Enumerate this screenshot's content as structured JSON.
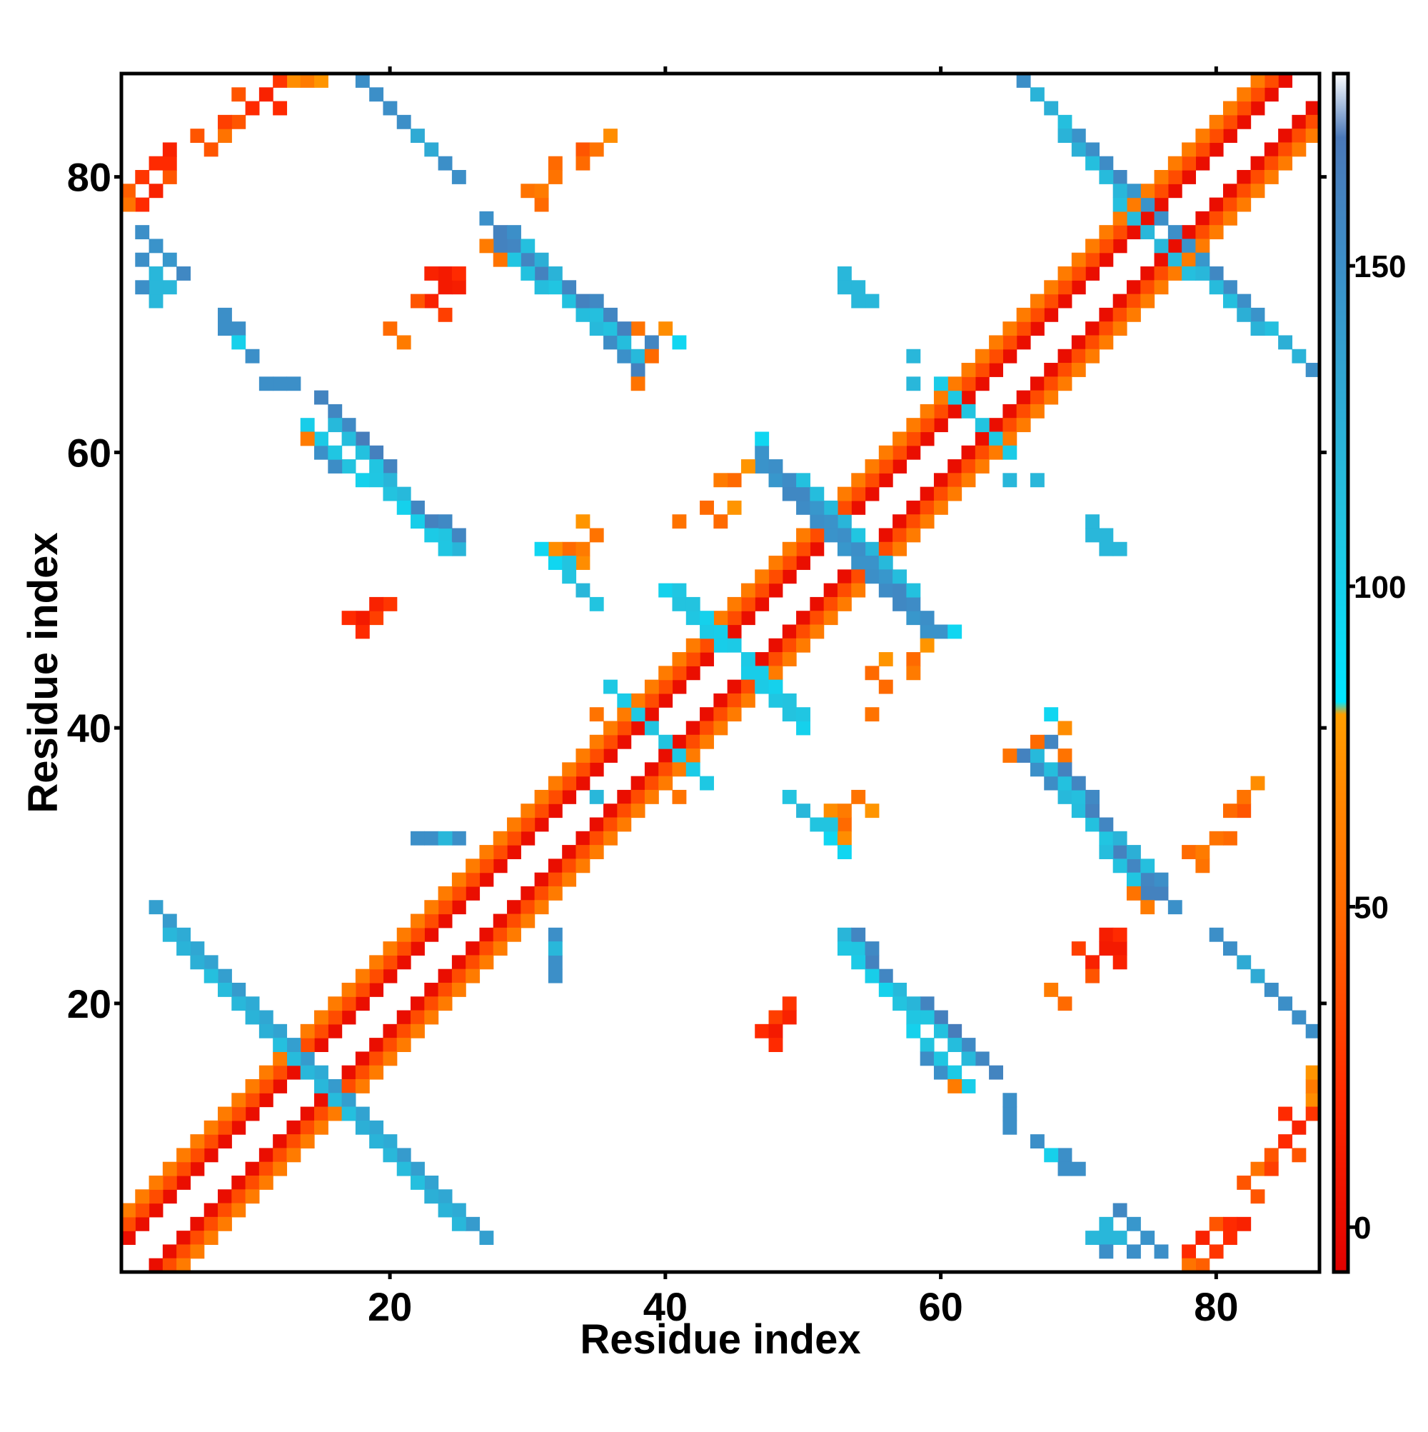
{
  "chart_data": {
    "type": "heatmap",
    "title": "",
    "xlabel": "Residue index",
    "ylabel": "Residue index",
    "xlim": [
      0.5,
      87.5
    ],
    "ylim": [
      0.5,
      87.5
    ],
    "xticks": [
      20,
      40,
      60,
      80
    ],
    "yticks": [
      20,
      40,
      60,
      80
    ],
    "colorbar": {
      "range": [
        -7,
        180
      ],
      "ticks": [
        0,
        50,
        100,
        150
      ],
      "stops": [
        {
          "value": -7,
          "color": "#e00000"
        },
        {
          "value": 20,
          "color": "#ff2a00"
        },
        {
          "value": 50,
          "color": "#ff6a00"
        },
        {
          "value": 80,
          "color": "#ff9e00"
        },
        {
          "value": 82,
          "color": "#00e5ff"
        },
        {
          "value": 110,
          "color": "#22c4e0"
        },
        {
          "value": 150,
          "color": "#3c8fc8"
        },
        {
          "value": 170,
          "color": "#4a78b8"
        },
        {
          "value": 180,
          "color": "#ffffff"
        }
      ]
    },
    "symmetric": true,
    "segments": [
      {
        "from": [
          1,
          3
        ],
        "to": [
          85,
          87
        ],
        "value": 5,
        "note": "i,i+2 diagonal"
      },
      {
        "from": [
          1,
          4
        ],
        "to": [
          84,
          87
        ],
        "value": 30
      },
      {
        "from": [
          1,
          5
        ],
        "to": [
          83,
          87
        ],
        "value": 60
      },
      {
        "from": [
          3,
          27
        ],
        "to": [
          27,
          3
        ],
        "value": 135,
        "note": "antiparallel sheet"
      },
      {
        "from": [
          4,
          25
        ],
        "to": [
          25,
          4
        ],
        "value": 120
      },
      {
        "from": [
          2,
          76
        ],
        "to": [
          5,
          73
        ],
        "value": 150
      },
      {
        "from": [
          15,
          64
        ],
        "to": [
          24,
          54
        ],
        "value": 160
      },
      {
        "from": [
          16,
          62
        ],
        "to": [
          25,
          53
        ],
        "value": 115
      },
      {
        "from": [
          27,
          77
        ],
        "to": [
          38,
          66
        ],
        "value": 155
      },
      {
        "from": [
          29,
          76
        ],
        "to": [
          37,
          68
        ],
        "value": 120
      },
      {
        "from": [
          68,
          39
        ],
        "to": [
          75,
          28
        ],
        "value": 155
      },
      {
        "from": [
          67,
          38
        ],
        "to": [
          74,
          29
        ],
        "value": 115
      },
      {
        "from": [
          66,
          87
        ],
        "to": [
          75,
          78
        ],
        "value": 150
      },
      {
        "from": [
          77,
          76
        ],
        "to": [
          87,
          66
        ],
        "value": 150
      },
      {
        "from": [
          76,
          75
        ],
        "to": [
          86,
          67
        ],
        "value": 120
      },
      {
        "from": [
          36,
          43
        ],
        "to": [
          41,
          38
        ],
        "value": 110
      },
      {
        "from": [
          40,
          50
        ],
        "to": [
          50,
          41
        ],
        "value": 105
      },
      {
        "from": [
          47,
          59
        ],
        "to": [
          60,
          47
        ],
        "value": 150
      },
      {
        "from": [
          50,
          58
        ],
        "to": [
          58,
          50
        ],
        "value": 115
      },
      {
        "from": [
          60,
          65
        ],
        "to": [
          65,
          60
        ],
        "value": 110
      },
      {
        "from": [
          54,
          25
        ],
        "to": [
          60,
          15
        ],
        "value": 155
      },
      {
        "from": [
          53,
          24
        ],
        "to": [
          62,
          14
        ],
        "value": 105
      }
    ],
    "cells": [
      {
        "x": 12,
        "y": 85,
        "value": 20
      },
      {
        "x": 11,
        "y": 86,
        "value": 15
      },
      {
        "x": 13,
        "y": 87,
        "value": 10
      },
      {
        "x": 9,
        "y": 84,
        "value": 40
      },
      {
        "x": 8,
        "y": 83,
        "value": 55
      },
      {
        "x": 7,
        "y": 82,
        "value": 40
      },
      {
        "x": 3,
        "y": 81,
        "value": 20
      },
      {
        "x": 2,
        "y": 80,
        "value": 25
      },
      {
        "x": 1,
        "y": 79,
        "value": 45
      },
      {
        "x": 14,
        "y": 87,
        "value": 60
      },
      {
        "x": 15,
        "y": 87,
        "value": 75
      },
      {
        "x": 19,
        "y": 86,
        "value": 150
      },
      {
        "x": 21,
        "y": 84,
        "value": 150
      },
      {
        "x": 23,
        "y": 82,
        "value": 130
      },
      {
        "x": 25,
        "y": 80,
        "value": 150
      },
      {
        "x": 24,
        "y": 73,
        "value": 10
      },
      {
        "x": 25,
        "y": 72,
        "value": 12
      },
      {
        "x": 23,
        "y": 71,
        "value": 15
      },
      {
        "x": 24,
        "y": 70,
        "value": 30
      },
      {
        "x": 21,
        "y": 68,
        "value": 60
      },
      {
        "x": 30,
        "y": 79,
        "value": 55
      },
      {
        "x": 32,
        "y": 81,
        "value": 50
      },
      {
        "x": 34,
        "y": 82,
        "value": 40
      },
      {
        "x": 36,
        "y": 83,
        "value": 70
      },
      {
        "x": 38,
        "y": 69,
        "value": 55
      },
      {
        "x": 40,
        "y": 69,
        "value": 70
      },
      {
        "x": 41,
        "y": 68,
        "value": 95
      },
      {
        "x": 39,
        "y": 67,
        "value": 50
      },
      {
        "x": 38,
        "y": 65,
        "value": 55
      },
      {
        "x": 9,
        "y": 69,
        "value": 150
      },
      {
        "x": 10,
        "y": 67,
        "value": 150
      },
      {
        "x": 12,
        "y": 65,
        "value": 150
      },
      {
        "x": 13,
        "y": 65,
        "value": 150
      },
      {
        "x": 2,
        "y": 74,
        "value": 150
      },
      {
        "x": 3,
        "y": 73,
        "value": 150
      },
      {
        "x": 4,
        "y": 72,
        "value": 120
      },
      {
        "x": 14,
        "y": 61,
        "value": 60
      },
      {
        "x": 20,
        "y": 49,
        "value": 25
      },
      {
        "x": 19,
        "y": 48,
        "value": 30
      },
      {
        "x": 18,
        "y": 47,
        "value": 20
      },
      {
        "x": 34,
        "y": 55,
        "value": 55
      },
      {
        "x": 33,
        "y": 53,
        "value": 50
      },
      {
        "x": 34,
        "y": 52,
        "value": 70
      },
      {
        "x": 32,
        "y": 52,
        "value": 95
      },
      {
        "x": 33,
        "y": 51,
        "value": 110
      },
      {
        "x": 35,
        "y": 49,
        "value": 110
      },
      {
        "x": 44,
        "y": 55,
        "value": 50
      },
      {
        "x": 45,
        "y": 58,
        "value": 50
      },
      {
        "x": 46,
        "y": 59,
        "value": 75
      },
      {
        "x": 47,
        "y": 61,
        "value": 95
      },
      {
        "x": 54,
        "y": 72,
        "value": 120
      },
      {
        "x": 55,
        "y": 71,
        "value": 120
      },
      {
        "x": 58,
        "y": 65,
        "value": 120
      },
      {
        "x": 67,
        "y": 58,
        "value": 120
      },
      {
        "x": 71,
        "y": 54,
        "value": 120
      },
      {
        "x": 72,
        "y": 53,
        "value": 120
      },
      {
        "x": 73,
        "y": 53,
        "value": 120
      },
      {
        "x": 56,
        "y": 45,
        "value": 75
      },
      {
        "x": 58,
        "y": 44,
        "value": 60
      },
      {
        "x": 56,
        "y": 43,
        "value": 50
      },
      {
        "x": 55,
        "y": 41,
        "value": 55
      },
      {
        "x": 35,
        "y": 41,
        "value": 55
      },
      {
        "x": 35,
        "y": 35,
        "value": 120
      },
      {
        "x": 53,
        "y": 34,
        "value": 60
      },
      {
        "x": 54,
        "y": 35,
        "value": 55
      },
      {
        "x": 55,
        "y": 34,
        "value": 75
      },
      {
        "x": 53,
        "y": 32,
        "value": 70
      },
      {
        "x": 52,
        "y": 33,
        "value": 110
      },
      {
        "x": 53,
        "y": 31,
        "value": 95
      },
      {
        "x": 50,
        "y": 34,
        "value": 120
      },
      {
        "x": 23,
        "y": 32,
        "value": 150
      },
      {
        "x": 25,
        "y": 32,
        "value": 150
      },
      {
        "x": 32,
        "y": 24,
        "value": 120
      },
      {
        "x": 32,
        "y": 22,
        "value": 150
      },
      {
        "x": 48,
        "y": 18,
        "value": 10
      },
      {
        "x": 49,
        "y": 19,
        "value": 15
      },
      {
        "x": 48,
        "y": 17,
        "value": 20
      },
      {
        "x": 65,
        "y": 11,
        "value": 150
      },
      {
        "x": 68,
        "y": 9,
        "value": 100
      },
      {
        "x": 69,
        "y": 8,
        "value": 150
      },
      {
        "x": 70,
        "y": 8,
        "value": 150
      },
      {
        "x": 71,
        "y": 3,
        "value": 120
      },
      {
        "x": 72,
        "y": 3,
        "value": 120
      },
      {
        "x": 73,
        "y": 3,
        "value": 120
      },
      {
        "x": 72,
        "y": 2,
        "value": 150
      },
      {
        "x": 74,
        "y": 2,
        "value": 150
      },
      {
        "x": 69,
        "y": 20,
        "value": 50
      },
      {
        "x": 71,
        "y": 22,
        "value": 40
      },
      {
        "x": 73,
        "y": 23,
        "value": 15
      },
      {
        "x": 72,
        "y": 24,
        "value": 10
      },
      {
        "x": 73,
        "y": 25,
        "value": 20
      },
      {
        "x": 74,
        "y": 28,
        "value": 55
      },
      {
        "x": 75,
        "y": 27,
        "value": 60
      },
      {
        "x": 78,
        "y": 31,
        "value": 50
      },
      {
        "x": 79,
        "y": 31,
        "value": 60
      },
      {
        "x": 80,
        "y": 32,
        "value": 55
      },
      {
        "x": 81,
        "y": 34,
        "value": 50
      },
      {
        "x": 82,
        "y": 35,
        "value": 55
      },
      {
        "x": 83,
        "y": 36,
        "value": 70
      },
      {
        "x": 81,
        "y": 24,
        "value": 150
      },
      {
        "x": 83,
        "y": 22,
        "value": 130
      },
      {
        "x": 85,
        "y": 20,
        "value": 150
      },
      {
        "x": 87,
        "y": 18,
        "value": 150
      },
      {
        "x": 76,
        "y": 29,
        "value": 150
      },
      {
        "x": 83,
        "y": 6,
        "value": 40
      },
      {
        "x": 84,
        "y": 8,
        "value": 30
      },
      {
        "x": 85,
        "y": 10,
        "value": 20
      },
      {
        "x": 86,
        "y": 11,
        "value": 15
      },
      {
        "x": 87,
        "y": 12,
        "value": 25
      },
      {
        "x": 86,
        "y": 9,
        "value": 40
      },
      {
        "x": 87,
        "y": 13,
        "value": 70
      },
      {
        "x": 78,
        "y": 2,
        "value": 20
      },
      {
        "x": 79,
        "y": 3,
        "value": 15
      },
      {
        "x": 80,
        "y": 4,
        "value": 40
      },
      {
        "x": 81,
        "y": 4,
        "value": 20
      },
      {
        "x": 82,
        "y": 4,
        "value": 15
      },
      {
        "x": 78,
        "y": 1,
        "value": 55
      },
      {
        "x": 80,
        "y": 2,
        "value": 25
      }
    ]
  }
}
